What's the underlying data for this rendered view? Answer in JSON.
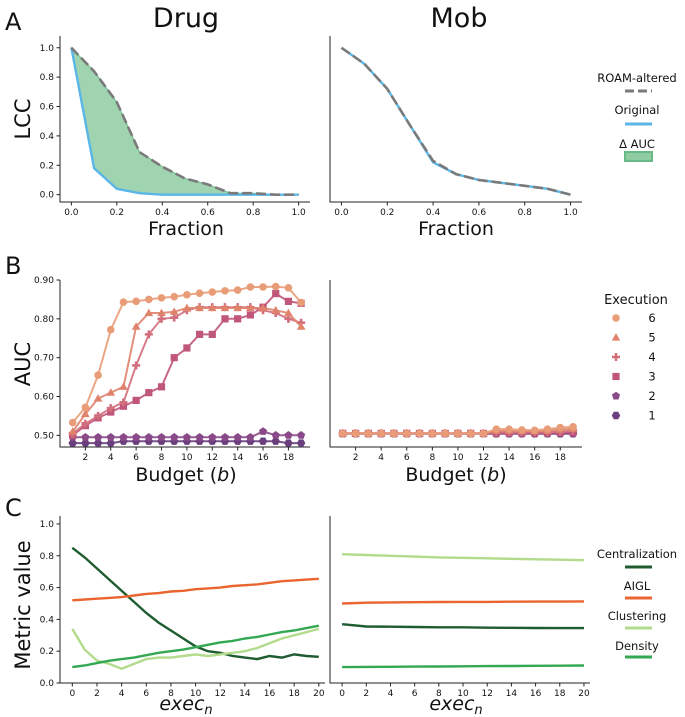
{
  "figure": {
    "col_titles": [
      "Drug",
      "Mob"
    ],
    "panel_labels": [
      "A",
      "B",
      "C"
    ]
  },
  "colors": {
    "roam": "#7a7a7a",
    "original": "#5bb6e8",
    "delta_fill": "#8fcca2",
    "delta_edge": "#69b986",
    "exec": [
      "#e99c78",
      "#e0836d",
      "#d26f7d",
      "#c0577a",
      "#8a4a88",
      "#6a3f7e"
    ],
    "centralization": "#1f5c30",
    "aigl": "#ea6530",
    "clustering": "#b2db8c",
    "density": "#33a853"
  },
  "chart_data": [
    {
      "id": "A-drug",
      "type": "line",
      "ylabel": "LCC",
      "xlabel": "Fraction",
      "xlim": [
        0,
        1
      ],
      "ylim": [
        0,
        1
      ],
      "xticks": [
        "0.0",
        "0.2",
        "0.4",
        "0.6",
        "0.8",
        "1.0"
      ],
      "yticks": [
        "0.0",
        "0.2",
        "0.4",
        "0.6",
        "0.8",
        "1.0"
      ],
      "x": [
        0,
        0.1,
        0.2,
        0.3,
        0.4,
        0.5,
        0.6,
        0.7,
        0.8,
        0.9,
        1.0
      ],
      "series": [
        {
          "name": "ROAM-altered",
          "values": [
            1.0,
            0.84,
            0.63,
            0.29,
            0.19,
            0.11,
            0.07,
            0.01,
            0.01,
            0.0,
            0.0
          ]
        },
        {
          "name": "Original",
          "values": [
            1.0,
            0.18,
            0.04,
            0.01,
            0.0,
            0.0,
            0.0,
            0.0,
            0.0,
            0.0,
            0.0
          ]
        }
      ]
    },
    {
      "id": "A-mob",
      "type": "line",
      "xlabel": "Fraction",
      "xlim": [
        0,
        1
      ],
      "ylim": [
        0,
        1
      ],
      "xticks": [
        "0.0",
        "0.2",
        "0.4",
        "0.6",
        "0.8",
        "1.0"
      ],
      "x": [
        0,
        0.1,
        0.2,
        0.3,
        0.4,
        0.5,
        0.6,
        0.7,
        0.8,
        0.9,
        1.0
      ],
      "series": [
        {
          "name": "ROAM-altered",
          "values": [
            1.0,
            0.89,
            0.72,
            0.47,
            0.23,
            0.14,
            0.1,
            0.08,
            0.06,
            0.04,
            0.0
          ]
        },
        {
          "name": "Original",
          "values": [
            1.0,
            0.89,
            0.72,
            0.47,
            0.22,
            0.14,
            0.1,
            0.08,
            0.06,
            0.04,
            0.0
          ]
        }
      ]
    },
    {
      "id": "B-drug",
      "type": "line",
      "ylabel": "AUC",
      "xlabel_pre": "Budget (",
      "xlabel_var": "b",
      "xlabel_post": ")",
      "xlim": [
        0,
        19.7
      ],
      "ylim": [
        0.47,
        0.9
      ],
      "xticks": [
        "2",
        "4",
        "6",
        "8",
        "10",
        "12",
        "14",
        "16",
        "18"
      ],
      "yticks": [
        "0.50",
        "0.60",
        "0.70",
        "0.80",
        "0.90"
      ],
      "x": [
        1,
        2,
        3,
        4,
        5,
        6,
        7,
        8,
        9,
        10,
        11,
        12,
        13,
        14,
        15,
        16,
        17,
        18,
        19
      ],
      "series": [
        {
          "name": "6",
          "marker": "circle",
          "values": [
            0.533,
            0.572,
            0.655,
            0.772,
            0.843,
            0.845,
            0.85,
            0.854,
            0.857,
            0.862,
            0.866,
            0.869,
            0.872,
            0.874,
            0.882,
            0.882,
            0.883,
            0.88,
            0.842
          ]
        },
        {
          "name": "5",
          "marker": "triangle",
          "values": [
            0.51,
            0.555,
            0.595,
            0.61,
            0.625,
            0.78,
            0.815,
            0.815,
            0.818,
            0.828,
            0.828,
            0.828,
            0.828,
            0.828,
            0.828,
            0.828,
            0.822,
            0.815,
            0.78
          ]
        },
        {
          "name": "4",
          "marker": "plus",
          "values": [
            0.505,
            0.53,
            0.55,
            0.57,
            0.585,
            0.68,
            0.76,
            0.8,
            0.803,
            0.822,
            0.83,
            0.83,
            0.83,
            0.83,
            0.83,
            0.822,
            0.815,
            0.8,
            0.79
          ]
        },
        {
          "name": "3",
          "marker": "square",
          "values": [
            0.5,
            0.525,
            0.545,
            0.56,
            0.575,
            0.59,
            0.61,
            0.625,
            0.7,
            0.725,
            0.76,
            0.76,
            0.8,
            0.8,
            0.81,
            0.83,
            0.865,
            0.845,
            0.84
          ]
        },
        {
          "name": "2",
          "marker": "pentagon",
          "values": [
            0.495,
            0.495,
            0.495,
            0.495,
            0.495,
            0.495,
            0.495,
            0.495,
            0.495,
            0.495,
            0.495,
            0.495,
            0.495,
            0.495,
            0.495,
            0.51,
            0.5,
            0.5,
            0.5
          ]
        },
        {
          "name": "1",
          "marker": "hexagon",
          "values": [
            0.48,
            0.48,
            0.48,
            0.48,
            0.485,
            0.485,
            0.485,
            0.485,
            0.485,
            0.485,
            0.485,
            0.485,
            0.485,
            0.485,
            0.485,
            0.485,
            0.485,
            0.48,
            0.48
          ]
        }
      ]
    },
    {
      "id": "B-mob",
      "type": "line",
      "xlabel_pre": "Budget (",
      "xlabel_var": "b",
      "xlabel_post": ")",
      "xlim": [
        0,
        19.7
      ],
      "ylim": [
        0.47,
        0.9
      ],
      "xticks": [
        "2",
        "4",
        "6",
        "8",
        "10",
        "12",
        "14",
        "16",
        "18"
      ],
      "x": [
        1,
        2,
        3,
        4,
        5,
        6,
        7,
        8,
        9,
        10,
        11,
        12,
        13,
        14,
        15,
        16,
        17,
        18,
        19
      ],
      "series": [
        {
          "name": "6",
          "marker": "circle",
          "values": [
            0.505,
            0.505,
            0.505,
            0.505,
            0.505,
            0.505,
            0.505,
            0.505,
            0.505,
            0.505,
            0.505,
            0.505,
            0.516,
            0.516,
            0.514,
            0.513,
            0.516,
            0.52,
            0.522
          ]
        },
        {
          "name": "5",
          "marker": "triangle",
          "values": [
            0.505,
            0.505,
            0.505,
            0.505,
            0.505,
            0.505,
            0.505,
            0.505,
            0.505,
            0.505,
            0.505,
            0.505,
            0.512,
            0.512,
            0.511,
            0.511,
            0.512,
            0.515,
            0.517
          ]
        },
        {
          "name": "4",
          "marker": "plus",
          "values": [
            0.505,
            0.505,
            0.505,
            0.505,
            0.505,
            0.505,
            0.505,
            0.505,
            0.505,
            0.505,
            0.505,
            0.505,
            0.508,
            0.508,
            0.508,
            0.508,
            0.508,
            0.51,
            0.512
          ]
        },
        {
          "name": "3",
          "marker": "square",
          "values": [
            0.505,
            0.505,
            0.505,
            0.505,
            0.505,
            0.505,
            0.505,
            0.505,
            0.505,
            0.505,
            0.505,
            0.505,
            0.506,
            0.506,
            0.506,
            0.506,
            0.506,
            0.507,
            0.508
          ]
        },
        {
          "name": "2",
          "marker": "pentagon",
          "values": [
            0.505,
            0.505,
            0.505,
            0.505,
            0.505,
            0.505,
            0.505,
            0.505,
            0.505,
            0.505,
            0.505,
            0.505,
            0.505,
            0.505,
            0.505,
            0.505,
            0.505,
            0.505,
            0.505
          ]
        },
        {
          "name": "1",
          "marker": "hexagon",
          "values": [
            0.504,
            0.504,
            0.504,
            0.504,
            0.504,
            0.504,
            0.504,
            0.504,
            0.504,
            0.504,
            0.504,
            0.504,
            0.504,
            0.504,
            0.504,
            0.504,
            0.504,
            0.504,
            0.504
          ]
        }
      ]
    },
    {
      "id": "C-drug",
      "type": "line",
      "ylabel": "Metric value",
      "xlabel_main": "exec",
      "xlabel_sub": "n",
      "xlim": [
        0,
        20
      ],
      "ylim": [
        0,
        1.05
      ],
      "xticks": [
        "0",
        "2",
        "4",
        "6",
        "8",
        "10",
        "12",
        "14",
        "16",
        "18",
        "20"
      ],
      "yticks": [
        "0.0",
        "0.2",
        "0.4",
        "0.6",
        "0.8",
        "1.0"
      ],
      "x": [
        0,
        1,
        2,
        3,
        4,
        5,
        6,
        7,
        8,
        9,
        10,
        11,
        12,
        13,
        14,
        15,
        16,
        17,
        18,
        19,
        20
      ],
      "series": [
        {
          "name": "Centralization",
          "values": [
            0.85,
            0.79,
            0.72,
            0.65,
            0.58,
            0.51,
            0.44,
            0.38,
            0.33,
            0.28,
            0.23,
            0.2,
            0.19,
            0.17,
            0.16,
            0.15,
            0.17,
            0.16,
            0.18,
            0.17,
            0.165
          ]
        },
        {
          "name": "AIGL",
          "values": [
            0.52,
            0.525,
            0.53,
            0.535,
            0.54,
            0.55,
            0.56,
            0.565,
            0.575,
            0.58,
            0.59,
            0.595,
            0.6,
            0.61,
            0.615,
            0.62,
            0.63,
            0.64,
            0.645,
            0.65,
            0.655
          ]
        },
        {
          "name": "Clustering",
          "values": [
            0.34,
            0.21,
            0.14,
            0.12,
            0.09,
            0.12,
            0.15,
            0.16,
            0.16,
            0.17,
            0.18,
            0.17,
            0.18,
            0.19,
            0.2,
            0.22,
            0.25,
            0.28,
            0.3,
            0.32,
            0.34
          ]
        },
        {
          "name": "Density",
          "values": [
            0.1,
            0.11,
            0.125,
            0.14,
            0.15,
            0.16,
            0.175,
            0.19,
            0.2,
            0.21,
            0.225,
            0.24,
            0.255,
            0.265,
            0.28,
            0.29,
            0.305,
            0.32,
            0.33,
            0.345,
            0.36
          ]
        }
      ]
    },
    {
      "id": "C-mob",
      "type": "line",
      "xlabel_main": "exec",
      "xlabel_sub": "n",
      "xlim": [
        0,
        20
      ],
      "ylim": [
        0,
        1.05
      ],
      "xticks": [
        "0",
        "2",
        "4",
        "6",
        "8",
        "10",
        "12",
        "14",
        "16",
        "18",
        "20"
      ],
      "x": [
        0,
        2,
        4,
        6,
        8,
        10,
        12,
        14,
        16,
        18,
        20
      ],
      "series": [
        {
          "name": "Centralization",
          "values": [
            0.37,
            0.355,
            0.354,
            0.352,
            0.35,
            0.35,
            0.348,
            0.347,
            0.346,
            0.345,
            0.345
          ]
        },
        {
          "name": "AIGL",
          "values": [
            0.5,
            0.505,
            0.507,
            0.508,
            0.509,
            0.51,
            0.51,
            0.511,
            0.512,
            0.512,
            0.513
          ]
        },
        {
          "name": "Clustering",
          "values": [
            0.81,
            0.805,
            0.8,
            0.795,
            0.79,
            0.787,
            0.784,
            0.781,
            0.778,
            0.775,
            0.772
          ]
        },
        {
          "name": "Density",
          "values": [
            0.1,
            0.101,
            0.102,
            0.103,
            0.104,
            0.105,
            0.106,
            0.107,
            0.108,
            0.109,
            0.11
          ]
        }
      ]
    }
  ],
  "legends": {
    "A": {
      "items": [
        "ROAM-altered",
        "Original",
        "Δ AUC"
      ]
    },
    "B": {
      "title": "Execution",
      "items": [
        "6",
        "5",
        "4",
        "3",
        "2",
        "1"
      ]
    },
    "C": {
      "items": [
        "Centralization",
        "AIGL",
        "Clustering",
        "Density"
      ]
    }
  }
}
